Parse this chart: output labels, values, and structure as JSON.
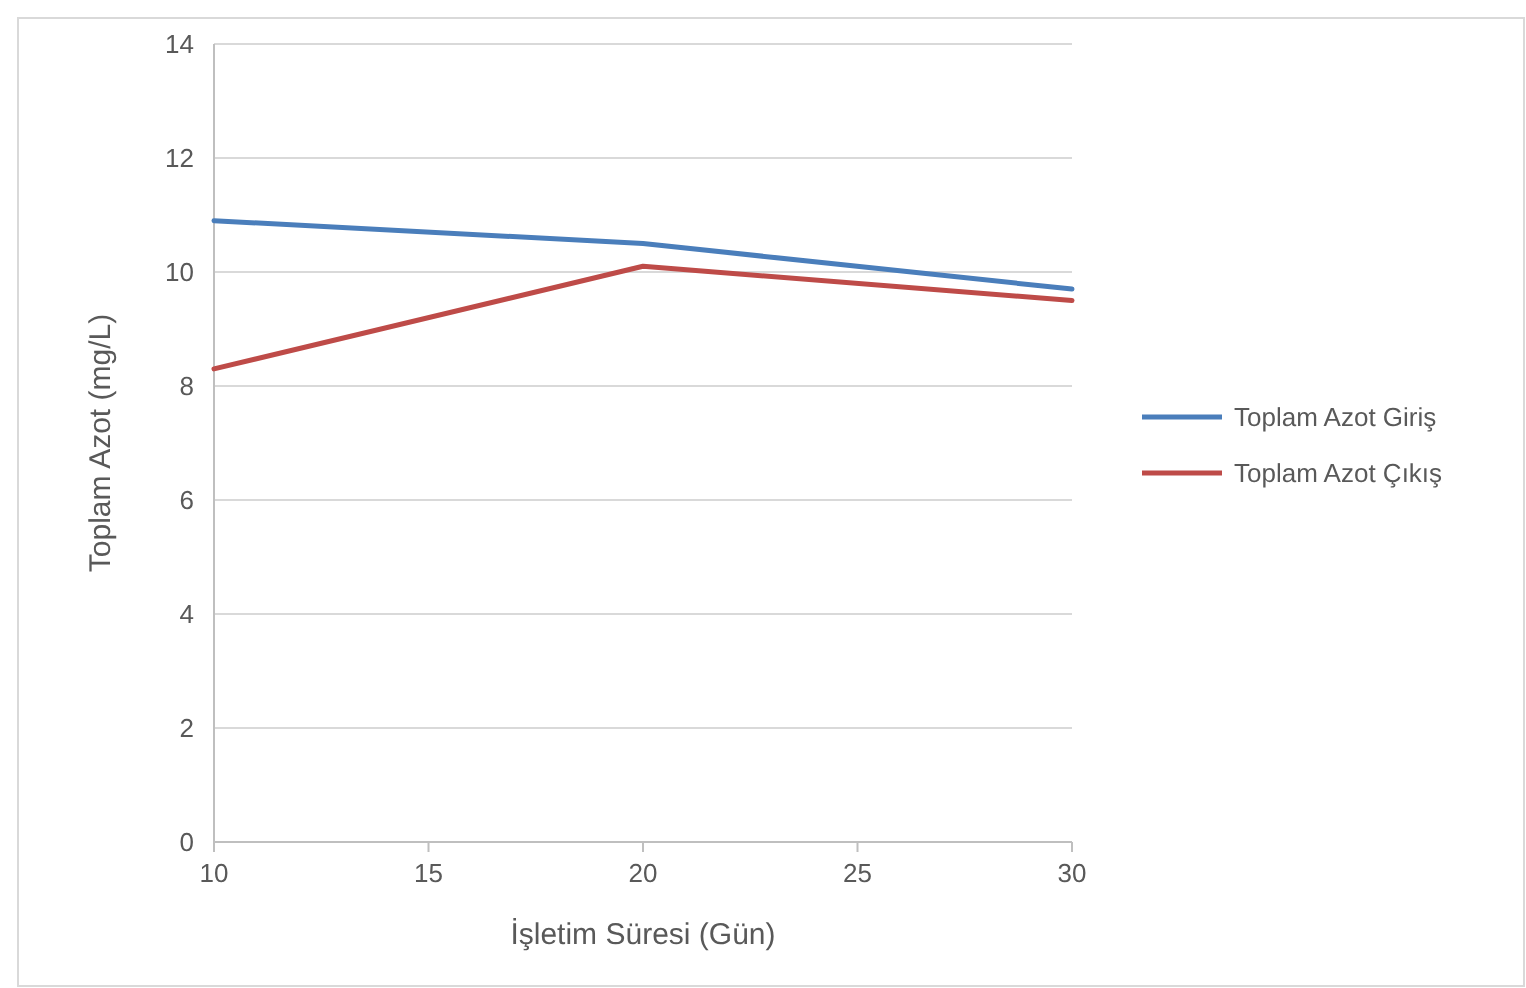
{
  "chart_data": {
    "type": "line",
    "xlabel": "İşletim Süresi (Gün)",
    "ylabel": "Toplam Azot (mg/L)",
    "x": [
      10,
      20,
      30
    ],
    "xlim": [
      10,
      30
    ],
    "xticks": [
      10,
      15,
      20,
      25,
      30
    ],
    "ylim": [
      0,
      14
    ],
    "yticks": [
      0,
      2,
      4,
      6,
      8,
      10,
      12,
      14
    ],
    "grid": "y",
    "legend": "right",
    "marker": "none",
    "line_style": "solid",
    "series": [
      {
        "name": "Toplam Azot Giriş",
        "color": "#4a7ebb",
        "values": [
          10.9,
          10.5,
          9.7
        ]
      },
      {
        "name": "Toplam Azot Çıkış",
        "color": "#be4b48",
        "values": [
          8.3,
          10.1,
          9.5
        ]
      }
    ]
  }
}
